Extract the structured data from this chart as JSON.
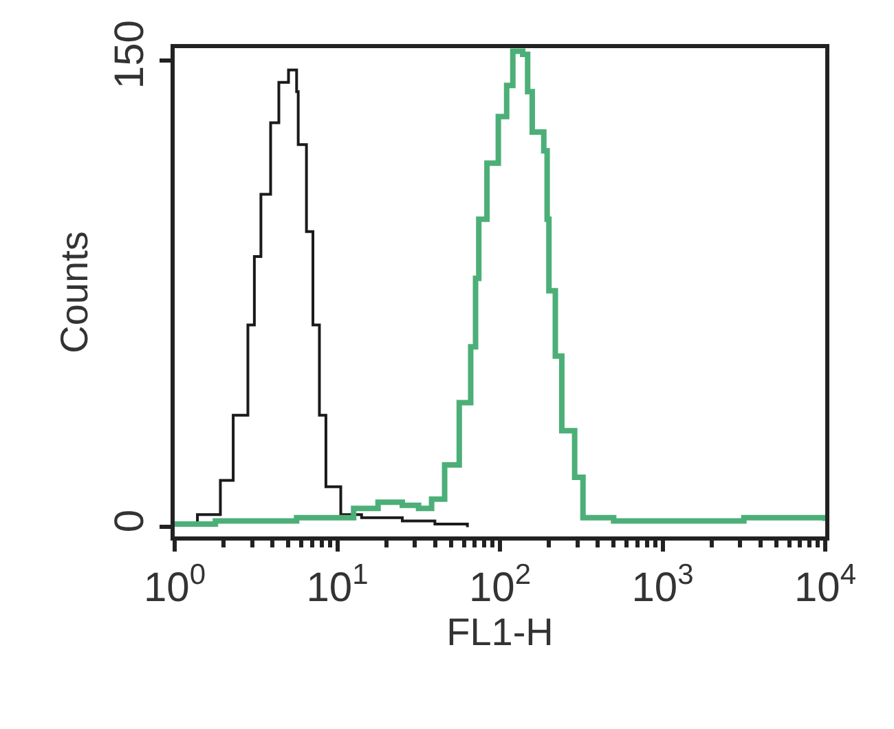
{
  "chart_data": {
    "type": "step",
    "xlabel": "FL1-H",
    "ylabel": "Counts",
    "log": "x",
    "xlim": [
      1,
      10000
    ],
    "xticks": [
      {
        "value": 1,
        "label": "10$^{0}$"
      },
      {
        "value": 10,
        "label": "10$^{1}$"
      },
      {
        "value": 100,
        "label": "10$^{2}$"
      },
      {
        "value": 1000,
        "label": "10$^{3}$"
      },
      {
        "value": 10000,
        "label": "10$^{4}$"
      }
    ],
    "ylim": [
      -3,
      154
    ],
    "yticks": [
      0,
      150
    ],
    "marker": "none",
    "line_style": "solid",
    "series": [
      {
        "color": "#1a1a1a",
        "x": [
          1,
          1.38,
          1.91,
          2.29,
          2.82,
          3.09,
          3.39,
          3.89,
          4.37,
          5.01,
          5.62,
          5.75,
          6.46,
          7.08,
          7.76,
          8.51,
          10.5,
          14.1,
          25.1,
          39.8,
          63.1
        ],
        "values": [
          1,
          4,
          15,
          36,
          65,
          87,
          107,
          130,
          143,
          147,
          140,
          123,
          95,
          65,
          36,
          13,
          4,
          3,
          2,
          1,
          0
        ]
      },
      {
        "color": "#4caf78",
        "x": [
          1,
          1.78,
          3.16,
          5.62,
          10,
          12.6,
          17.8,
          25.1,
          31.6,
          38.0,
          45.7,
          56.2,
          66.1,
          70.8,
          74.1,
          83.2,
          97.7,
          110,
          120,
          138,
          148,
          158,
          186,
          195,
          200,
          219,
          240,
          288,
          324,
          500,
          1000,
          3160,
          10000
        ],
        "values": [
          1,
          2,
          2,
          3,
          3,
          6,
          8,
          7,
          6,
          9,
          20,
          40,
          58,
          80,
          99,
          117,
          132,
          142,
          153,
          152,
          140,
          127,
          121,
          99,
          76,
          55,
          31,
          16,
          3,
          2,
          2,
          3,
          2
        ]
      }
    ]
  }
}
